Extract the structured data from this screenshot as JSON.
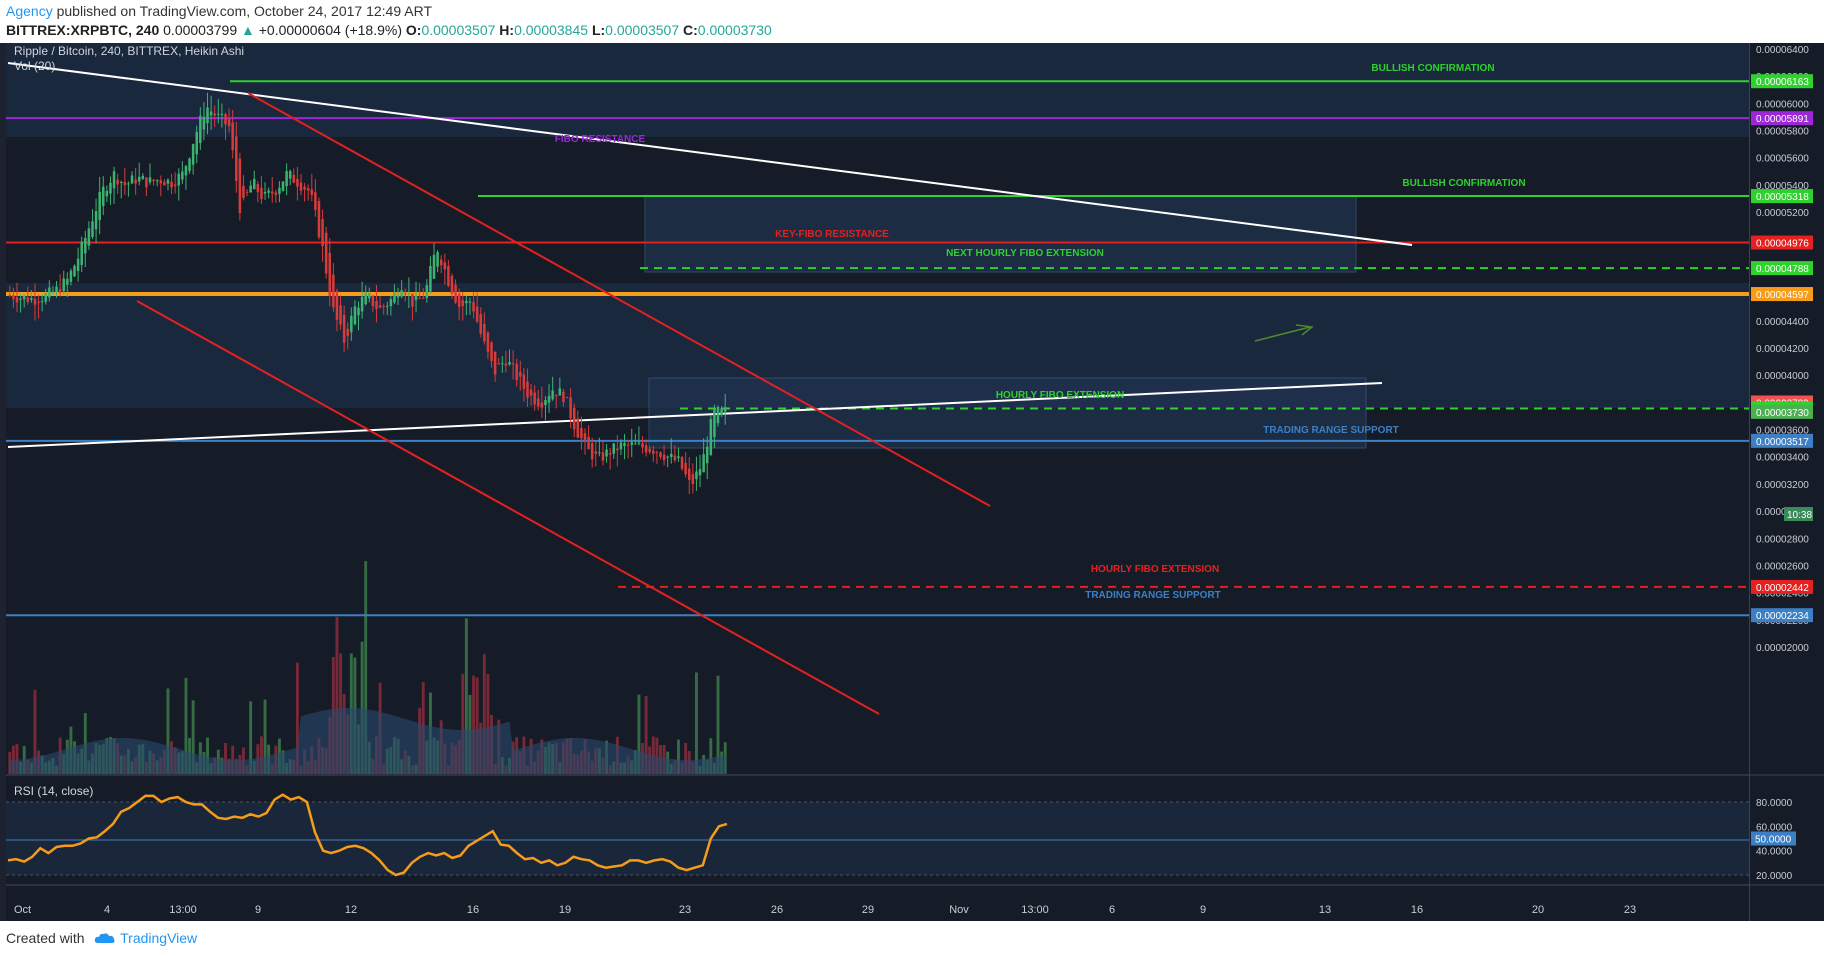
{
  "header": {
    "author": "Agency",
    "published": "published on TradingView.com, October 24, 2017 12:49 ART",
    "symbol": "BITTREX:XRPBTC, 240",
    "last": "0.00003799",
    "change": "+0.00000604 (+18.9%)",
    "o_label": "O:",
    "o": "0.00003507",
    "h_label": "H:",
    "h": "0.00003845",
    "l_label": "L:",
    "l": "0.00003507",
    "c_label": "C:",
    "c": "0.00003730"
  },
  "footer": {
    "created_with": "Created with",
    "brand": "TradingView"
  },
  "colors": {
    "background": "#161c27",
    "zone_band": "#1f3350",
    "up_candle": "#3cb371",
    "down_candle": "#d93a3a",
    "green_line": "#2ed12e",
    "red_line": "#e52020",
    "purple_line": "#9c27d6",
    "orange_line": "#f59c1a",
    "blue_line": "#3d7fc4",
    "rsi_line": "#f59c1a"
  },
  "chart_data": {
    "type": "candlestick",
    "title": "Ripple / Bitcoin, 240, BITTREX, Heikin Ashi",
    "volume_label": "Vol (20)",
    "rsi_label": "RSI (14, close)",
    "x_ticks": [
      "Oct",
      "4",
      "13:00",
      "9",
      "12",
      "16",
      "19",
      "23",
      "26",
      "29",
      "Nov",
      "13:00",
      "6",
      "9",
      "13",
      "16",
      "20",
      "23"
    ],
    "y_ticks": [
      "0.00006400",
      "0.00006200",
      "0.00006000",
      "0.00005800",
      "0.00005600",
      "0.00005400",
      "0.00005200",
      "0.00005000",
      "0.00004800",
      "0.00004600",
      "0.00004400",
      "0.00004200",
      "0.00004000",
      "0.00003800",
      "0.00003600",
      "0.00003400",
      "0.00003200",
      "0.00003000",
      "0.00002800",
      "0.00002600",
      "0.00002400",
      "0.00002200",
      "0.00002000"
    ],
    "ylim": [
      1.78e-05,
      6.48e-05
    ],
    "rsi_ticks": [
      "80.0000",
      "60.0000",
      "40.0000",
      "20.0000"
    ],
    "rsi_ylim": [
      15,
      92
    ],
    "rsi_level": "50.0000",
    "countdown": "10:38",
    "price_tags": [
      {
        "value": "0.00006163",
        "color": "#2ed12e"
      },
      {
        "value": "0.00005891",
        "color": "#9c27d6"
      },
      {
        "value": "0.00005318",
        "color": "#2ed12e"
      },
      {
        "value": "0.00004976",
        "color": "#e52020"
      },
      {
        "value": "0.00004788",
        "color": "#2ed12e"
      },
      {
        "value": "0.00004597",
        "color": "#f59c1a"
      },
      {
        "value": "0.00003799",
        "color": "#ef5350"
      },
      {
        "value": "0.00003755",
        "color": "#2ed12e"
      },
      {
        "value": "0.00003730",
        "color": "#4caf50"
      },
      {
        "value": "0.00003517",
        "color": "#3d7fc4"
      },
      {
        "value": "0.00002442",
        "color": "#e52020"
      },
      {
        "value": "0.00002234",
        "color": "#3d7fc4"
      }
    ],
    "levels": [
      {
        "label": "BULLISH CONFIRMATION",
        "value": 6.163e-05,
        "color": "#2ed12e",
        "style": "solid"
      },
      {
        "label": "FIBO RESISTANCE",
        "value": 5.891e-05,
        "color": "#9c27d6",
        "style": "solid"
      },
      {
        "label": "BULLISH CONFIRMATION",
        "value": 5.318e-05,
        "color": "#2ed12e",
        "style": "solid"
      },
      {
        "label": "KEY-FIBO RESISTANCE",
        "value": 4.976e-05,
        "color": "#e52020",
        "style": "solid"
      },
      {
        "label": "NEXT HOURLY FIBO EXTENSION",
        "value": 4.788e-05,
        "color": "#2ed12e",
        "style": "dashed"
      },
      {
        "label": "",
        "value": 4.597e-05,
        "color": "#f59c1a",
        "style": "solid"
      },
      {
        "label": "HOURLY FIBO EXTENSION",
        "value": 3.755e-05,
        "color": "#2ed12e",
        "style": "dashed"
      },
      {
        "label": "TRADING RANGE SUPPORT",
        "value": 3.517e-05,
        "color": "#3d7fc4",
        "style": "solid"
      },
      {
        "label": "HOURLY FIBO EXTENSION",
        "value": 2.442e-05,
        "color": "#e52020",
        "style": "dashed"
      },
      {
        "label": "TRADING RANGE SUPPORT",
        "value": 2.234e-05,
        "color": "#3d7fc4",
        "style": "solid"
      }
    ],
    "close_path": [
      4.59e-05,
      4.57e-05,
      4.56e-05,
      4.58e-05,
      4.62e-05,
      4.7e-05,
      4.88e-05,
      5.12e-05,
      5.35e-05,
      5.48e-05,
      5.4e-05,
      5.45e-05,
      5.42e-05,
      5.44e-05,
      5.42e-05,
      5.48e-05,
      5.75e-05,
      5.98e-05,
      5.9e-05,
      5.83e-05,
      5.2e-05,
      5.42e-05,
      5.3e-05,
      5.36e-05,
      5.48e-05,
      5.42e-05,
      5.35e-05,
      4.98e-05,
      4.48e-05,
      4.25e-05,
      4.52e-05,
      4.58e-05,
      4.48e-05,
      4.55e-05,
      4.68e-05,
      4.52e-05,
      4.6e-05,
      4.95e-05,
      4.7e-05,
      4.5e-05,
      4.55e-05,
      4.25e-05,
      4.02e-05,
      4.12e-05,
      3.98e-05,
      3.85e-05,
      3.8e-05,
      3.9e-05,
      3.85e-05,
      3.62e-05,
      3.45e-05,
      3.38e-05,
      3.44e-05,
      3.48e-05,
      3.48e-05,
      3.47e-05,
      3.45e-05,
      3.4e-05,
      3.36e-05,
      3.18e-05,
      3.35e-05,
      3.72e-05,
      3.73e-05
    ],
    "rsi": [
      32,
      33,
      31,
      35,
      42,
      38,
      43,
      44,
      44,
      46,
      50,
      51,
      56,
      62,
      72,
      75,
      80,
      85,
      85,
      80,
      83,
      84,
      80,
      78,
      78,
      72,
      67,
      66,
      68,
      67,
      70,
      68,
      71,
      82,
      86,
      82,
      84,
      80,
      55,
      40,
      38,
      40,
      43,
      44,
      42,
      38,
      32,
      24,
      20,
      22,
      30,
      35,
      38,
      36,
      38,
      34,
      36,
      44,
      48,
      52,
      56,
      45,
      44,
      38,
      33,
      34,
      30,
      32,
      28,
      30,
      35,
      33,
      32,
      28,
      26,
      27,
      28,
      32,
      32,
      30,
      32,
      33,
      31,
      26,
      24,
      26,
      28,
      50,
      60,
      62
    ]
  },
  "annotations": {
    "bullish_1": "BULLISH CONFIRMATION",
    "fibo_res": "FIBO RESISTANCE",
    "bullish_2": "BULLISH CONFIRMATION",
    "key_fibo": "KEY-FIBO RESISTANCE",
    "next_hourly": "NEXT HOURLY FIBO EXTENSION",
    "hourly_g": "HOURLY FIBO EXTENSION",
    "trs_1": "TRADING RANGE SUPPORT",
    "hourly_r": "HOURLY FIBO EXTENSION",
    "trs_2": "TRADING RANGE SUPPORT"
  }
}
